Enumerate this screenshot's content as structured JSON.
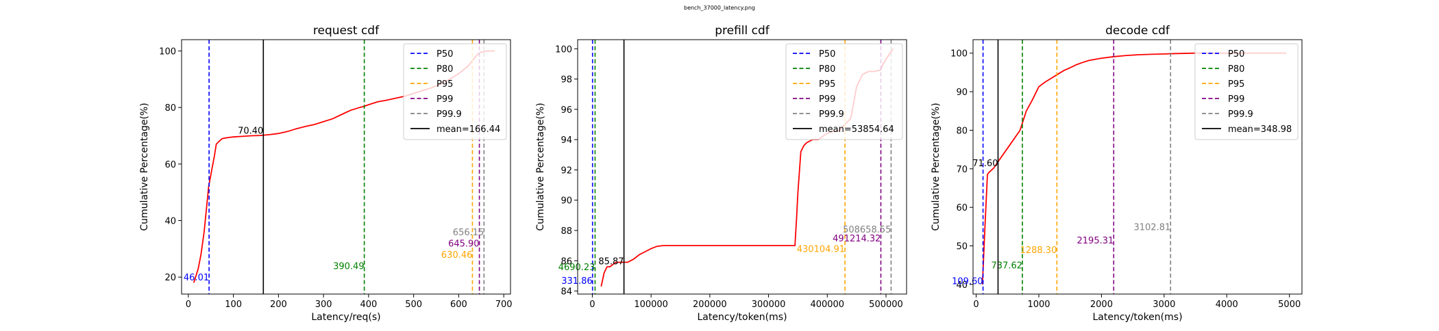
{
  "figure": {
    "suptitle": "bench_37000_latency.png"
  },
  "chart_data": [
    {
      "type": "line",
      "title": "request cdf",
      "xlabel": "Latency/req(s)",
      "ylabel": "Cumulative Percentage(%)",
      "xlim": [
        -15,
        715
      ],
      "ylim": [
        14,
        104
      ],
      "xticks": [
        0,
        100,
        200,
        300,
        400,
        500,
        600,
        700
      ],
      "yticks": [
        20,
        40,
        60,
        80,
        100
      ],
      "legend_position": "top-right",
      "grid": false,
      "cdf_color": "#ff0000",
      "cdf": {
        "x": [
          12,
          22,
          28,
          35,
          40,
          45,
          52,
          58,
          62,
          68,
          75,
          82,
          90,
          100,
          120,
          140,
          160,
          180,
          200,
          220,
          240,
          260,
          280,
          300,
          320,
          340,
          360,
          380,
          390,
          400,
          420,
          440,
          460,
          480,
          500,
          520,
          540,
          560,
          580,
          600,
          620,
          630,
          635,
          640,
          645,
          650,
          656,
          665,
          680
        ],
        "y": [
          18,
          23,
          28,
          36,
          44,
          52,
          58,
          63,
          67,
          68,
          69,
          69.2,
          69.4,
          69.6,
          69.8,
          70.0,
          70.1,
          70.4,
          70.8,
          71.5,
          72.5,
          73.3,
          74.0,
          75.0,
          76.0,
          77.5,
          79.0,
          80.0,
          80.4,
          81.0,
          82.0,
          82.6,
          83.3,
          84.0,
          85.0,
          86.0,
          87.0,
          88.3,
          90.0,
          92.0,
          94.5,
          96.5,
          97.5,
          98.5,
          99.2,
          99.6,
          99.8,
          100,
          100
        ]
      },
      "percentiles": [
        {
          "name": "P50",
          "value": 46.01,
          "label": "46.01",
          "color": "#0000ff",
          "label_y": 20
        },
        {
          "name": "P80",
          "value": 390.49,
          "label": "390.49",
          "color": "#008000",
          "label_y": 24
        },
        {
          "name": "P95",
          "value": 630.46,
          "label": "630.46",
          "color": "#ffa500",
          "label_y": 28
        },
        {
          "name": "P99",
          "value": 645.9,
          "label": "645.90",
          "color": "#800080",
          "label_y": 32
        },
        {
          "name": "P99.9",
          "value": 656.15,
          "label": "656.15",
          "color": "#808080",
          "label_y": 36
        }
      ],
      "mean": {
        "value": 166.44,
        "legend": "mean=166.44",
        "annotation": "70.40",
        "annotation_y": 72
      }
    },
    {
      "type": "line",
      "title": "prefill cdf",
      "xlabel": "Latency/token(ms)",
      "ylabel": "Cumulative Percentage(%)",
      "xlim": [
        -25000,
        535000
      ],
      "ylim": [
        83.8,
        100.6
      ],
      "xticks": [
        0,
        100000,
        200000,
        300000,
        400000,
        500000
      ],
      "yticks": [
        84,
        86,
        88,
        90,
        92,
        94,
        96,
        98,
        100
      ],
      "legend_position": "top-right",
      "grid": false,
      "cdf_color": "#ff0000",
      "cdf": {
        "x": [
          15000,
          20000,
          25000,
          30000,
          40000,
          50000,
          60000,
          70000,
          80000,
          90000,
          100000,
          110000,
          120000,
          130000,
          200000,
          300000,
          345000,
          348000,
          350000,
          355000,
          360000,
          365000,
          375000,
          385000,
          395000,
          405000,
          420000,
          430000,
          440000,
          450000,
          460000,
          470000,
          480000,
          491000,
          495000,
          505000,
          512000
        ],
        "y": [
          84.3,
          85.2,
          85.6,
          85.6,
          85.9,
          85.9,
          85.9,
          86.1,
          86.4,
          86.6,
          86.8,
          86.95,
          87.0,
          87.0,
          87.0,
          87.0,
          87.0,
          89.0,
          90.5,
          93.2,
          93.6,
          93.8,
          94.0,
          94.0,
          94.3,
          94.5,
          94.6,
          95.0,
          95.4,
          97.5,
          98.3,
          98.5,
          98.5,
          98.6,
          99.0,
          99.6,
          100
        ]
      },
      "percentiles": [
        {
          "name": "P50",
          "value": 331.86,
          "label": "331.86",
          "color": "#0000ff",
          "label_y": 84.7
        },
        {
          "name": "P80",
          "value": 4690.23,
          "label": "4690.23",
          "color": "#008000",
          "label_y": 85.6
        },
        {
          "name": "P95",
          "value": 430104.91,
          "label": "430104.91",
          "color": "#ffa500",
          "label_y": 86.8
        },
        {
          "name": "P99",
          "value": 491214.32,
          "label": "491214.32",
          "color": "#800080",
          "label_y": 87.5
        },
        {
          "name": "P99.9",
          "value": 508658.55,
          "label": "508658.55",
          "color": "#808080",
          "label_y": 88.1
        }
      ],
      "mean": {
        "value": 53854.64,
        "legend": "mean=53854.64",
        "annotation": "85.87",
        "annotation_y": 86.0
      }
    },
    {
      "type": "line",
      "title": "decode cdf",
      "xlabel": "Latency/token(ms)",
      "ylabel": "Cumulative Percentage(%)",
      "xlim": [
        -50,
        5200
      ],
      "ylim": [
        37.5,
        103.5
      ],
      "xticks": [
        0,
        1000,
        2000,
        3000,
        4000,
        5000
      ],
      "yticks": [
        40,
        50,
        60,
        70,
        80,
        90,
        100
      ],
      "legend_position": "top-right",
      "grid": false,
      "cdf_color": "#ff0000",
      "cdf": {
        "x": [
          100,
          140,
          180,
          200,
          280,
          400,
          550,
          700,
          800,
          900,
          1000,
          1100,
          1200,
          1300,
          1400,
          1500,
          1600,
          1700,
          1800,
          2000,
          2200,
          2400,
          2600,
          2800,
          3000,
          3200,
          3500,
          4000,
          4500,
          4950
        ],
        "y": [
          40,
          55,
          68.5,
          69,
          70.2,
          73.0,
          76.5,
          80,
          85,
          88,
          91.3,
          92.5,
          93.5,
          94.5,
          95.5,
          96.2,
          97.0,
          97.6,
          98.1,
          98.7,
          99.1,
          99.4,
          99.6,
          99.7,
          99.8,
          99.9,
          100,
          100,
          100,
          100
        ]
      },
      "percentiles": [
        {
          "name": "P50",
          "value": 109.6,
          "label": "109.60",
          "color": "#0000ff",
          "label_y": 41
        },
        {
          "name": "P80",
          "value": 737.62,
          "label": "737.62",
          "color": "#008000",
          "label_y": 45
        },
        {
          "name": "P95",
          "value": 1288.3,
          "label": "1288.30",
          "color": "#ffa500",
          "label_y": 49
        },
        {
          "name": "P99",
          "value": 2195.31,
          "label": "2195.31",
          "color": "#800080",
          "label_y": 51.5
        },
        {
          "name": "P99.9",
          "value": 3102.81,
          "label": "3102.81",
          "color": "#808080",
          "label_y": 55
        }
      ],
      "mean": {
        "value": 348.98,
        "legend": "mean=348.98",
        "annotation": "71.60",
        "annotation_y": 71.6,
        "annotation_align": "end"
      }
    }
  ]
}
